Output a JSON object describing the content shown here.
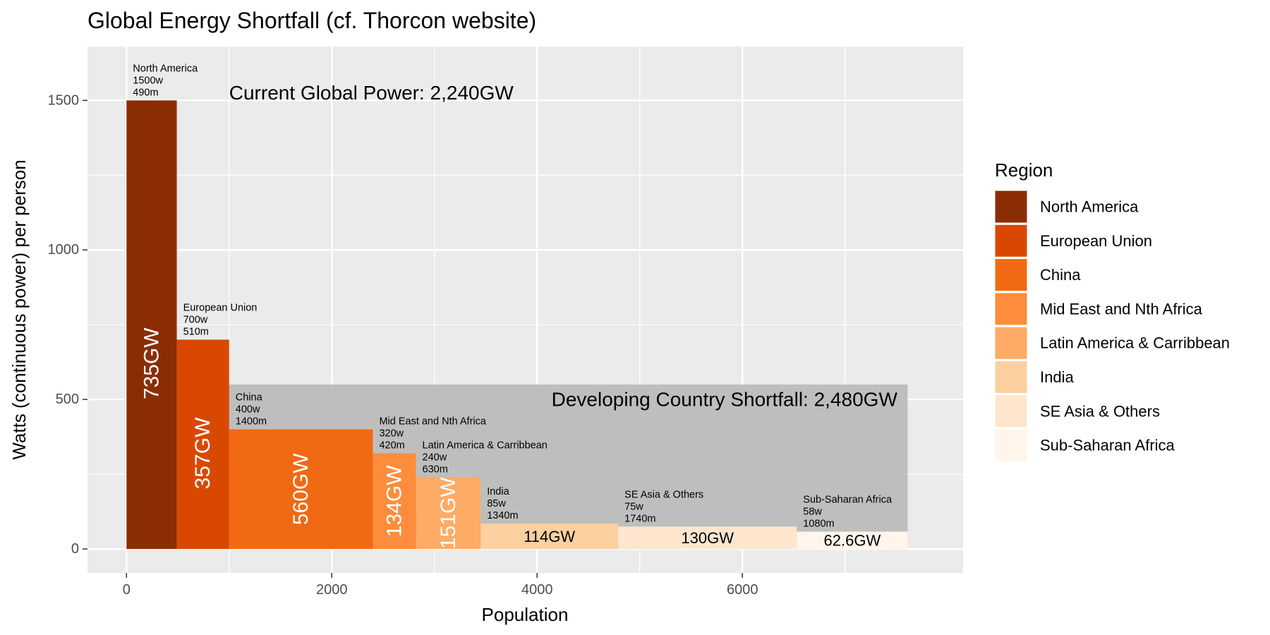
{
  "chart_data": {
    "type": "bar",
    "title": "Global Energy Shortfall (cf. Thorcon website)",
    "xlabel": "Population",
    "ylabel": "Watts (continuous power) per person",
    "xlim": [
      -380,
      8150
    ],
    "ylim": [
      -80,
      1680
    ],
    "x_ticks": [
      0,
      2000,
      4000,
      6000
    ],
    "x_tick_labels": [
      "0",
      "2000",
      "4000",
      "6000"
    ],
    "y_ticks": [
      0,
      500,
      1000,
      1500
    ],
    "y_tick_labels": [
      "0",
      "500",
      "1000",
      "1500"
    ],
    "grid": true,
    "legend": {
      "title": "Region",
      "placement": "right"
    },
    "series": [
      {
        "name": "North America",
        "watts": 1500,
        "population": 490,
        "x_start": 0,
        "x_end": 490,
        "watts_label": "1500w",
        "pop_label": "490m",
        "gw_label": "735GW",
        "color": "#8B2D02",
        "label_color": "#ffffff",
        "label_orientation": "vertical",
        "label_y": 620
      },
      {
        "name": "European Union",
        "watts": 700,
        "population": 510,
        "x_start": 490,
        "x_end": 1000,
        "watts_label": "700w",
        "pop_label": "510m",
        "gw_label": "357GW",
        "color": "#D94801",
        "label_color": "#ffffff",
        "label_orientation": "vertical",
        "label_y": 320
      },
      {
        "name": "China",
        "watts": 400,
        "population": 1400,
        "x_start": 1000,
        "x_end": 2400,
        "watts_label": "400w",
        "pop_label": "1400m",
        "gw_label": "560GW",
        "color": "#F16913",
        "label_color": "#ffffff",
        "label_orientation": "vertical",
        "label_y": 200
      },
      {
        "name": "Mid East and Nth Africa",
        "watts": 320,
        "population": 420,
        "x_start": 2400,
        "x_end": 2820,
        "watts_label": "320w",
        "pop_label": "420m",
        "gw_label": "134GW",
        "color": "#FD8D3C",
        "label_color": "#ffffff",
        "label_orientation": "vertical",
        "label_y": 160
      },
      {
        "name": "Latin America & Carribbean",
        "watts": 240,
        "population": 630,
        "x_start": 2820,
        "x_end": 3450,
        "watts_label": "240w",
        "pop_label": "630m",
        "gw_label": "151GW",
        "color": "#FDAB67",
        "label_color": "#ffffff",
        "label_orientation": "vertical",
        "label_y": 120
      },
      {
        "name": "India",
        "watts": 85,
        "population": 1340,
        "x_start": 3450,
        "x_end": 4790,
        "watts_label": "85w",
        "pop_label": "1340m",
        "gw_label": "114GW",
        "color": "#FDD0A2",
        "label_color": "#000000",
        "label_orientation": "horizontal",
        "label_y": 42
      },
      {
        "name": "SE Asia & Others",
        "watts": 75,
        "population": 1740,
        "x_start": 4790,
        "x_end": 6530,
        "watts_label": "75w",
        "pop_label": "1740m",
        "gw_label": "130GW",
        "color": "#FEE6CE",
        "label_color": "#000000",
        "label_orientation": "horizontal",
        "label_y": 37
      },
      {
        "name": "Sub-Saharan Africa",
        "watts": 58,
        "population": 1080,
        "x_start": 6530,
        "x_end": 7610,
        "watts_label": "58w",
        "pop_label": "1080m",
        "gw_label": "62.6GW",
        "color": "#FFF5EB",
        "label_color": "#000000",
        "label_orientation": "horizontal",
        "label_y": 29
      }
    ],
    "shortfall_band": {
      "x_start": 1000,
      "x_end": 7610,
      "y_top": 550,
      "color": "#BEBEBE"
    },
    "annotations": [
      {
        "text": "Current Global Power: 2,240GW",
        "x": 1000,
        "y": 1525,
        "anchor": "start"
      },
      {
        "text": "Developing Country Shortfall: 2,480GW",
        "x": 7510,
        "y": 500,
        "anchor": "end"
      }
    ],
    "colors": {
      "panel_background": "#EBEBEB",
      "grid_major": "#FFFFFF"
    }
  }
}
